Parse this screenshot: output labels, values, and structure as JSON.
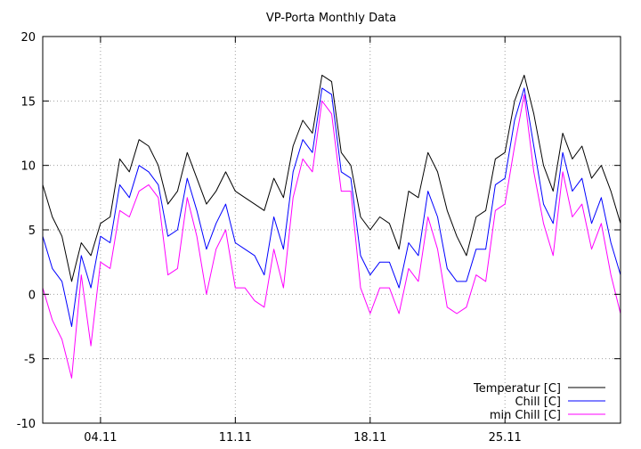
{
  "chart_data": {
    "type": "line",
    "title": "VP-Porta Monthly Data",
    "xlabel": "",
    "ylabel": "",
    "xlim": [
      0,
      30
    ],
    "ylim": [
      -10,
      20
    ],
    "y_ticks": [
      -10,
      -5,
      0,
      5,
      10,
      15,
      20
    ],
    "y_tick_labels": [
      "-10",
      "-5",
      "0",
      "5",
      "10",
      "15",
      "20"
    ],
    "x_ticks": [
      3,
      10,
      17,
      24
    ],
    "x_tick_labels": [
      "04.11",
      "11.11",
      "18.11",
      "25.11"
    ],
    "grid": true,
    "legend_position": "bottom-right",
    "series": [
      {
        "name": "Temperatur [C]",
        "color": "#000000",
        "x": [
          0,
          0.5,
          1,
          1.5,
          2,
          2.5,
          3,
          3.5,
          4,
          4.5,
          5,
          5.5,
          6,
          6.5,
          7,
          7.5,
          8,
          8.5,
          9,
          9.5,
          10,
          10.5,
          11,
          11.5,
          12,
          12.5,
          13,
          13.5,
          14,
          14.5,
          15,
          15.5,
          16,
          16.5,
          17,
          17.5,
          18,
          18.5,
          19,
          19.5,
          20,
          20.5,
          21,
          21.5,
          22,
          22.5,
          23,
          23.5,
          24,
          24.5,
          25,
          25.5,
          26,
          26.5,
          27,
          27.5,
          28,
          28.5,
          29,
          29.5,
          30
        ],
        "values": [
          8.5,
          6.0,
          4.5,
          1.0,
          4.0,
          3.0,
          5.5,
          6.0,
          10.5,
          9.5,
          12.0,
          11.5,
          10.0,
          7.0,
          8.0,
          11.0,
          9.0,
          7.0,
          8.0,
          9.5,
          8.0,
          7.5,
          7.0,
          6.5,
          9.0,
          7.5,
          11.5,
          13.5,
          12.5,
          17.0,
          16.5,
          11.0,
          10.0,
          6.0,
          5.0,
          6.0,
          5.5,
          3.5,
          8.0,
          7.5,
          11.0,
          9.5,
          6.5,
          4.5,
          3.0,
          6.0,
          6.5,
          10.5,
          11.0,
          15.0,
          17.0,
          14.0,
          10.0,
          8.0,
          12.5,
          10.5,
          11.5,
          9.0,
          10.0,
          8.0,
          5.5
        ]
      },
      {
        "name": "Chill [C]",
        "color": "#0000ff",
        "x": [
          0,
          0.5,
          1,
          1.5,
          2,
          2.5,
          3,
          3.5,
          4,
          4.5,
          5,
          5.5,
          6,
          6.5,
          7,
          7.5,
          8,
          8.5,
          9,
          9.5,
          10,
          10.5,
          11,
          11.5,
          12,
          12.5,
          13,
          13.5,
          14,
          14.5,
          15,
          15.5,
          16,
          16.5,
          17,
          17.5,
          18,
          18.5,
          19,
          19.5,
          20,
          20.5,
          21,
          21.5,
          22,
          22.5,
          23,
          23.5,
          24,
          24.5,
          25,
          25.5,
          26,
          26.5,
          27,
          27.5,
          28,
          28.5,
          29,
          29.5,
          30
        ],
        "values": [
          4.5,
          2.0,
          1.0,
          -2.5,
          3.0,
          0.5,
          4.5,
          4.0,
          8.5,
          7.5,
          10.0,
          9.5,
          8.5,
          4.5,
          5.0,
          9.0,
          6.5,
          3.5,
          5.5,
          7.0,
          4.0,
          3.5,
          3.0,
          1.5,
          6.0,
          3.5,
          9.5,
          12.0,
          11.0,
          16.0,
          15.5,
          9.5,
          9.0,
          3.0,
          1.5,
          2.5,
          2.5,
          0.5,
          4.0,
          3.0,
          8.0,
          6.0,
          2.0,
          1.0,
          1.0,
          3.5,
          3.5,
          8.5,
          9.0,
          13.5,
          16.0,
          11.5,
          7.0,
          5.5,
          11.0,
          8.0,
          9.0,
          5.5,
          7.5,
          4.0,
          1.5
        ]
      },
      {
        "name": "min Chill [C]",
        "color": "#ff00ff",
        "x": [
          0,
          0.5,
          1,
          1.5,
          2,
          2.5,
          3,
          3.5,
          4,
          4.5,
          5,
          5.5,
          6,
          6.5,
          7,
          7.5,
          8,
          8.5,
          9,
          9.5,
          10,
          10.5,
          11,
          11.5,
          12,
          12.5,
          13,
          13.5,
          14,
          14.5,
          15,
          15.5,
          16,
          16.5,
          17,
          17.5,
          18,
          18.5,
          19,
          19.5,
          20,
          20.5,
          21,
          21.5,
          22,
          22.5,
          23,
          23.5,
          24,
          24.5,
          25,
          25.5,
          26,
          26.5,
          27,
          27.5,
          28,
          28.5,
          29,
          29.5,
          30
        ],
        "values": [
          0.5,
          -2.0,
          -3.5,
          -6.5,
          1.5,
          -4.0,
          2.5,
          2.0,
          6.5,
          6.0,
          8.0,
          8.5,
          7.5,
          1.5,
          2.0,
          7.5,
          4.5,
          0.0,
          3.5,
          5.0,
          0.5,
          0.5,
          -0.5,
          -1.0,
          3.5,
          0.5,
          7.5,
          10.5,
          9.5,
          15.0,
          14.0,
          8.0,
          8.0,
          0.5,
          -1.5,
          0.5,
          0.5,
          -1.5,
          2.0,
          1.0,
          6.0,
          3.5,
          -1.0,
          -1.5,
          -1.0,
          1.5,
          1.0,
          6.5,
          7.0,
          11.5,
          15.5,
          9.5,
          5.5,
          3.0,
          9.5,
          6.0,
          7.0,
          3.5,
          5.5,
          1.5,
          -1.5
        ]
      }
    ]
  }
}
